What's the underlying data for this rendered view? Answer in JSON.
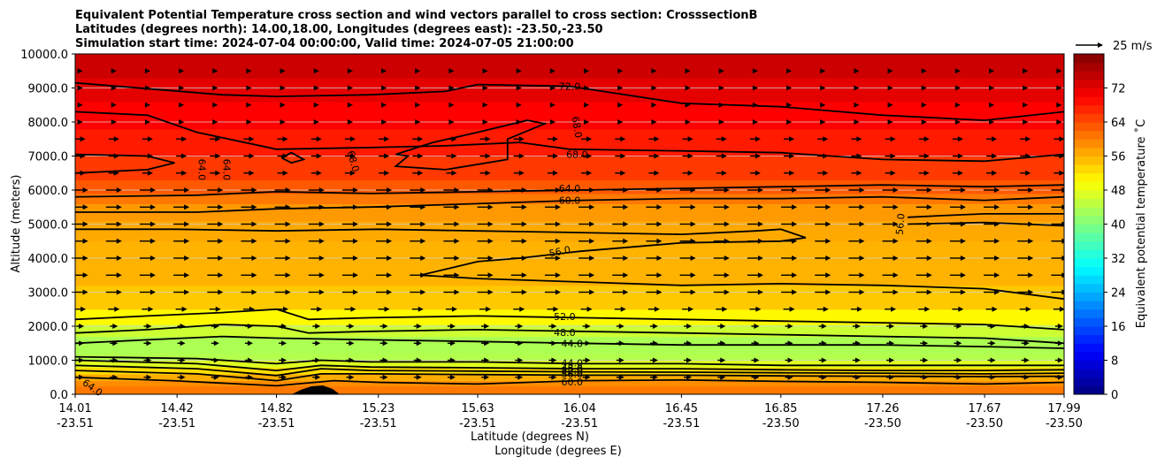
{
  "chart_data": {
    "type": "contour",
    "title_lines": [
      "Equivalent Potential Temperature cross section and wind vectors parallel to cross section: CrosssectionB",
      "Latitudes (degrees north): 14.00,18.00, Longitudes (degrees east): -23.50,-23.50",
      "Simulation start time: 2024-07-04 00:00:00, Valid time: 2024-07-05 21:00:00"
    ],
    "ylabel": "Altitude (meters)",
    "xlabel_lat": "Latitude (degrees N)",
    "xlabel_lon": "Longitude (degrees E)",
    "ylim": [
      0,
      10000
    ],
    "yticks": [
      "0.0",
      "1000.0",
      "2000.0",
      "3000.0",
      "4000.0",
      "5000.0",
      "6000.0",
      "7000.0",
      "8000.0",
      "9000.0",
      "10000.0"
    ],
    "xticks_lat": [
      "14.01",
      "14.42",
      "14.82",
      "15.23",
      "15.63",
      "16.04",
      "16.45",
      "16.85",
      "17.26",
      "17.67",
      "17.99"
    ],
    "xticks_lon": [
      "-23.51",
      "-23.51",
      "-23.51",
      "-23.51",
      "-23.51",
      "-23.51",
      "-23.51",
      "-23.50",
      "-23.50",
      "-23.50",
      "-23.50"
    ],
    "colorbar_label": "Equivalent potential temperature ˚C",
    "colorbar_ticks": [
      "0",
      "8",
      "16",
      "24",
      "32",
      "40",
      "48",
      "56",
      "64",
      "72"
    ],
    "colorbar_range": [
      0,
      80
    ],
    "quiver_key": "25 m/s",
    "contour_labels": [
      {
        "text": "72.0",
        "lat": 16.0,
        "alt": 9050,
        "angle": 0
      },
      {
        "text": "68.0",
        "lat": 16.03,
        "alt": 7850,
        "angle": 80
      },
      {
        "text": "68.0",
        "lat": 16.03,
        "alt": 7050,
        "angle": 0
      },
      {
        "text": "68.0",
        "lat": 15.13,
        "alt": 6850,
        "angle": 75
      },
      {
        "text": "64.0",
        "lat": 14.52,
        "alt": 6600,
        "angle": 90
      },
      {
        "text": "64.0",
        "lat": 14.62,
        "alt": 6600,
        "angle": 90
      },
      {
        "text": "64.0",
        "lat": 16.0,
        "alt": 6050,
        "angle": 0
      },
      {
        "text": "60.0",
        "lat": 16.0,
        "alt": 5700,
        "angle": 0
      },
      {
        "text": "56.0",
        "lat": 17.33,
        "alt": 5000,
        "angle": -85
      },
      {
        "text": "56.0",
        "lat": 15.96,
        "alt": 4200,
        "angle": -12
      },
      {
        "text": "52.0",
        "lat": 15.98,
        "alt": 2280,
        "angle": 0
      },
      {
        "text": "48.0",
        "lat": 15.98,
        "alt": 1820,
        "angle": 0
      },
      {
        "text": "44.0",
        "lat": 16.01,
        "alt": 1500,
        "angle": 0
      },
      {
        "text": "44.0",
        "lat": 16.01,
        "alt": 920,
        "angle": 0
      },
      {
        "text": "48.0",
        "lat": 16.01,
        "alt": 760,
        "angle": 0
      },
      {
        "text": "52.0",
        "lat": 16.01,
        "alt": 700,
        "angle": 0
      },
      {
        "text": "56.0",
        "lat": 16.01,
        "alt": 600,
        "angle": 0
      },
      {
        "text": "60.0",
        "lat": 16.01,
        "alt": 370,
        "angle": 0
      },
      {
        "text": "64.0",
        "lat": 14.08,
        "alt": 200,
        "angle": 35
      }
    ],
    "contour_lines": [
      {
        "level": 72,
        "points": [
          [
            14.01,
            9150
          ],
          [
            14.3,
            8980
          ],
          [
            14.6,
            8800
          ],
          [
            14.82,
            8750
          ],
          [
            15.2,
            8800
          ],
          [
            15.5,
            8900
          ],
          [
            15.63,
            9100
          ],
          [
            16.0,
            9050
          ],
          [
            16.45,
            8550
          ],
          [
            16.85,
            8450
          ],
          [
            17.26,
            8200
          ],
          [
            17.67,
            8050
          ],
          [
            17.99,
            8300
          ]
        ]
      },
      {
        "level": 68,
        "points": [
          [
            14.01,
            8300
          ],
          [
            14.3,
            8200
          ],
          [
            14.5,
            7700
          ],
          [
            14.82,
            7200
          ],
          [
            15.2,
            7250
          ],
          [
            15.5,
            7300
          ],
          [
            15.8,
            7400
          ],
          [
            16.0,
            7200
          ],
          [
            16.45,
            7150
          ],
          [
            16.85,
            7100
          ],
          [
            17.26,
            6900
          ],
          [
            17.67,
            6850
          ],
          [
            17.99,
            7050
          ]
        ]
      },
      {
        "level": 68,
        "points": [
          [
            15.3,
            7050
          ],
          [
            15.35,
            7000
          ],
          [
            15.3,
            6700
          ],
          [
            15.5,
            6600
          ],
          [
            15.75,
            6900
          ],
          [
            15.75,
            7500
          ],
          [
            15.9,
            7950
          ],
          [
            15.83,
            8050
          ],
          [
            15.63,
            7700
          ],
          [
            15.45,
            7400
          ],
          [
            15.3,
            7050
          ]
        ]
      },
      {
        "level": 68,
        "points": [
          [
            14.84,
            6950
          ],
          [
            14.88,
            7100
          ],
          [
            14.93,
            6900
          ],
          [
            14.88,
            6800
          ],
          [
            14.84,
            6950
          ]
        ]
      },
      {
        "level": 64,
        "points": [
          [
            14.01,
            7050
          ],
          [
            14.3,
            7000
          ],
          [
            14.41,
            6800
          ],
          [
            14.3,
            6600
          ],
          [
            14.01,
            6500
          ]
        ]
      },
      {
        "level": 64,
        "points": [
          [
            14.01,
            5800
          ],
          [
            14.5,
            5850
          ],
          [
            14.82,
            5950
          ],
          [
            15.2,
            5900
          ],
          [
            15.63,
            5950
          ],
          [
            16.04,
            6000
          ],
          [
            16.45,
            6050
          ],
          [
            16.85,
            6100
          ],
          [
            17.26,
            6150
          ],
          [
            17.67,
            6100
          ],
          [
            17.99,
            6150
          ]
        ]
      },
      {
        "level": 60,
        "points": [
          [
            14.01,
            5350
          ],
          [
            14.5,
            5350
          ],
          [
            14.82,
            5450
          ],
          [
            15.2,
            5500
          ],
          [
            15.63,
            5600
          ],
          [
            16.04,
            5700
          ],
          [
            16.45,
            5750
          ],
          [
            16.85,
            5750
          ],
          [
            17.26,
            5800
          ],
          [
            17.67,
            5700
          ],
          [
            17.99,
            5800
          ]
        ]
      },
      {
        "level": 56,
        "points": [
          [
            14.01,
            4850
          ],
          [
            14.42,
            4850
          ],
          [
            14.82,
            4800
          ],
          [
            15.23,
            4850
          ],
          [
            15.63,
            4800
          ],
          [
            16.04,
            4750
          ],
          [
            16.45,
            4700
          ],
          [
            16.75,
            4800
          ],
          [
            16.85,
            4850
          ],
          [
            16.95,
            4600
          ],
          [
            16.85,
            4500
          ],
          [
            16.45,
            4450
          ],
          [
            16.04,
            4200
          ],
          [
            15.8,
            4000
          ],
          [
            15.63,
            3900
          ],
          [
            15.4,
            3500
          ],
          [
            15.63,
            3400
          ],
          [
            16.04,
            3300
          ],
          [
            16.45,
            3200
          ],
          [
            16.85,
            3250
          ],
          [
            17.26,
            3200
          ],
          [
            17.67,
            3100
          ],
          [
            17.99,
            2800
          ]
        ]
      },
      {
        "level": 56,
        "points": [
          [
            17.36,
            5200
          ],
          [
            17.5,
            5250
          ],
          [
            17.67,
            5300
          ],
          [
            17.99,
            5300
          ]
        ]
      },
      {
        "level": 56,
        "points": [
          [
            17.36,
            5000
          ],
          [
            17.67,
            5050
          ],
          [
            17.99,
            4950
          ]
        ]
      },
      {
        "level": 52,
        "points": [
          [
            14.01,
            2200
          ],
          [
            14.3,
            2300
          ],
          [
            14.6,
            2400
          ],
          [
            14.82,
            2500
          ],
          [
            14.95,
            2200
          ],
          [
            15.2,
            2250
          ],
          [
            15.63,
            2300
          ],
          [
            16.04,
            2250
          ],
          [
            16.45,
            2200
          ],
          [
            16.85,
            2150
          ],
          [
            17.26,
            2100
          ],
          [
            17.67,
            2050
          ],
          [
            17.99,
            1900
          ]
        ]
      },
      {
        "level": 48,
        "points": [
          [
            14.01,
            1800
          ],
          [
            14.3,
            1900
          ],
          [
            14.6,
            2050
          ],
          [
            14.82,
            2000
          ],
          [
            14.95,
            1800
          ],
          [
            15.2,
            1850
          ],
          [
            15.63,
            1900
          ],
          [
            16.04,
            1850
          ],
          [
            16.45,
            1800
          ],
          [
            16.85,
            1750
          ],
          [
            17.26,
            1700
          ],
          [
            17.67,
            1650
          ],
          [
            17.99,
            1500
          ]
        ]
      },
      {
        "level": 44,
        "points": [
          [
            14.01,
            1500
          ],
          [
            14.3,
            1600
          ],
          [
            14.6,
            1700
          ],
          [
            14.82,
            1650
          ],
          [
            15.2,
            1600
          ],
          [
            15.63,
            1550
          ],
          [
            16.04,
            1500
          ],
          [
            16.45,
            1450
          ],
          [
            16.85,
            1450
          ],
          [
            17.26,
            1450
          ],
          [
            17.67,
            1400
          ],
          [
            17.99,
            1350
          ]
        ]
      },
      {
        "level": 44,
        "points": [
          [
            14.01,
            1100
          ],
          [
            14.5,
            1050
          ],
          [
            14.82,
            900
          ],
          [
            15.0,
            1000
          ],
          [
            15.2,
            950
          ],
          [
            15.63,
            950
          ],
          [
            16.04,
            900
          ],
          [
            16.45,
            900
          ],
          [
            16.85,
            850
          ],
          [
            17.26,
            850
          ],
          [
            17.67,
            850
          ],
          [
            17.99,
            850
          ]
        ]
      },
      {
        "level": 48,
        "points": [
          [
            14.01,
            1000
          ],
          [
            14.5,
            900
          ],
          [
            14.82,
            700
          ],
          [
            15.0,
            850
          ],
          [
            15.2,
            800
          ],
          [
            15.63,
            780
          ],
          [
            16.04,
            750
          ],
          [
            16.45,
            750
          ],
          [
            16.85,
            720
          ],
          [
            17.26,
            700
          ],
          [
            17.67,
            700
          ],
          [
            17.99,
            720
          ]
        ]
      },
      {
        "level": 52,
        "points": [
          [
            14.01,
            850
          ],
          [
            14.5,
            750
          ],
          [
            14.82,
            550
          ],
          [
            15.0,
            750
          ],
          [
            15.2,
            700
          ],
          [
            15.63,
            680
          ],
          [
            16.04,
            660
          ],
          [
            16.45,
            650
          ],
          [
            16.85,
            630
          ],
          [
            17.26,
            620
          ],
          [
            17.67,
            600
          ],
          [
            17.99,
            620
          ]
        ]
      },
      {
        "level": 56,
        "points": [
          [
            14.01,
            700
          ],
          [
            14.5,
            600
          ],
          [
            14.82,
            400
          ],
          [
            15.0,
            600
          ],
          [
            15.2,
            600
          ],
          [
            15.63,
            580
          ],
          [
            16.04,
            560
          ],
          [
            16.45,
            560
          ],
          [
            16.85,
            540
          ],
          [
            17.26,
            530
          ],
          [
            17.67,
            520
          ],
          [
            17.99,
            530
          ]
        ]
      },
      {
        "level": 60,
        "points": [
          [
            14.01,
            500
          ],
          [
            14.4,
            400
          ],
          [
            14.82,
            250
          ],
          [
            15.05,
            400
          ],
          [
            15.23,
            350
          ],
          [
            15.63,
            300
          ],
          [
            16.04,
            400
          ],
          [
            16.45,
            420
          ],
          [
            16.85,
            380
          ],
          [
            17.26,
            350
          ],
          [
            17.67,
            300
          ],
          [
            17.99,
            350
          ]
        ]
      }
    ]
  }
}
